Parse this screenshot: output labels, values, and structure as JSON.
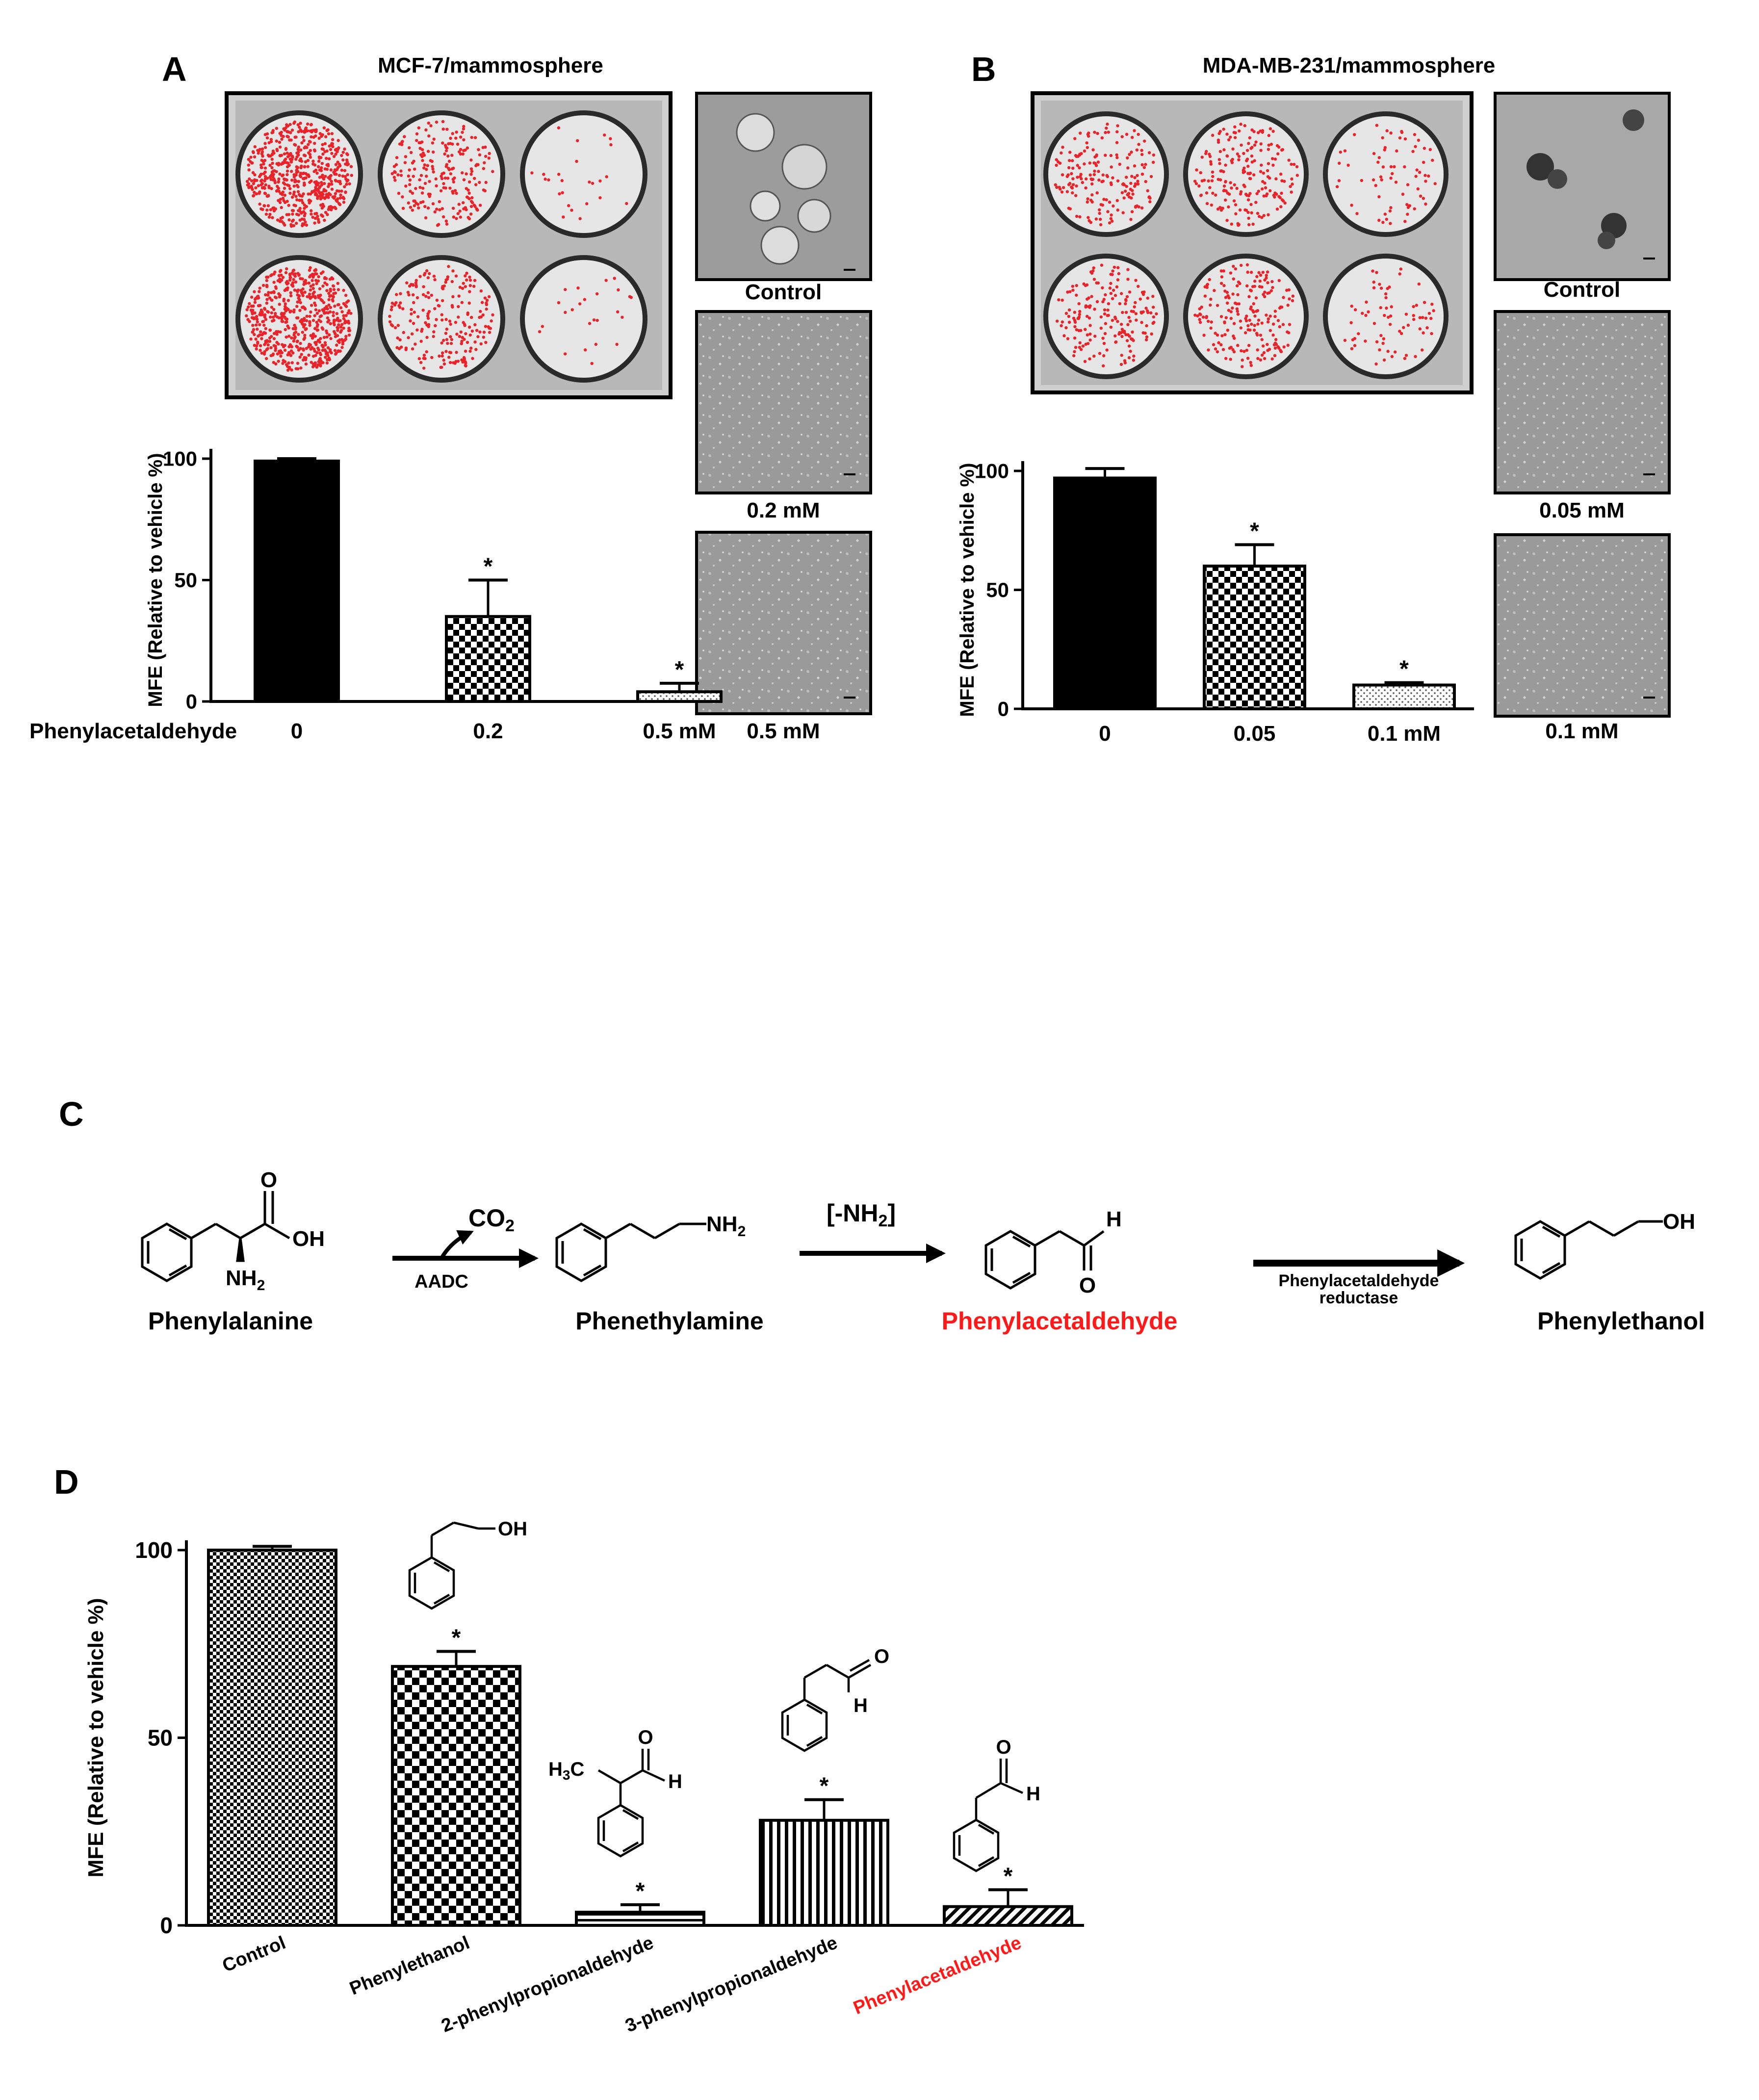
{
  "panels": {
    "A": {
      "letter": "A",
      "title": "MCF-7/mammosphere",
      "image_labels": [
        "Control",
        "0.2 mM",
        "0.5 mM"
      ],
      "treatment_label": "Phenylacetaldehyde"
    },
    "B": {
      "letter": "B",
      "title": "MDA-MB-231/mammosphere",
      "image_labels": [
        "Control",
        "0.05 mM",
        "0.1 mM"
      ]
    },
    "C": {
      "letter": "C",
      "compounds": [
        "Phenylalanine",
        "Phenethylamine",
        "Phenylacetaldehyde",
        "Phenylethanol"
      ],
      "highlight_compound": "Phenylacetaldehyde",
      "arrow1_top": "CO",
      "arrow1_top_sub": "2",
      "arrow1_bottom": "AADC",
      "arrow2_top": "[-NH",
      "arrow2_top_sub": "2",
      "arrow2_top_end": "]",
      "arrow3_bottom_line1": "Phenylacetaldehyde",
      "arrow3_bottom_line2": "reductase",
      "atoms": {
        "O": "O",
        "OH": "OH",
        "NH": "NH",
        "sub2": "2",
        "H": "H",
        "H3C": "H",
        "sub3": "3",
        "C": "C"
      }
    },
    "D": {
      "letter": "D"
    }
  },
  "colors": {
    "highlight": "#ff1a1a",
    "plate_dot": "#e8232a"
  },
  "chart_data": [
    {
      "id": "A",
      "type": "bar",
      "categories": [
        "0",
        "0.2",
        "0.5 mM"
      ],
      "values": [
        99,
        35,
        4
      ],
      "errors": [
        1,
        15,
        3.5
      ],
      "significance": [
        "",
        "*",
        "*"
      ],
      "patterns": [
        "solid",
        "checker",
        "dots"
      ],
      "ylabel": "MFE (Relative to vehicle %)",
      "ylim": [
        0,
        100
      ],
      "yticks": [
        0,
        50,
        100
      ]
    },
    {
      "id": "B",
      "type": "bar",
      "categories": [
        "0",
        "0.05",
        "0.1 mM"
      ],
      "values": [
        97,
        60,
        10
      ],
      "errors": [
        4,
        9,
        1
      ],
      "significance": [
        "",
        "*",
        "*"
      ],
      "patterns": [
        "solid",
        "checker",
        "dots"
      ],
      "ylabel": "MFE (Relative to vehicle %)",
      "ylim": [
        0,
        100
      ],
      "yticks": [
        0,
        50,
        100
      ]
    },
    {
      "id": "D",
      "type": "bar",
      "categories": [
        "Control",
        "Phenylethanol",
        "2-phenylpropionaldehyde",
        "3-phenylpropionaldehyde",
        "Phenylacetaldehyde"
      ],
      "values": [
        100,
        69,
        3.5,
        28,
        5
      ],
      "errors": [
        1,
        4,
        2,
        5.5,
        4.5
      ],
      "significance": [
        "",
        "*",
        "*",
        "*",
        "*"
      ],
      "patterns": [
        "finecheck",
        "bigcheck",
        "hstripe",
        "vstripe",
        "diag"
      ],
      "highlight_category": "Phenylacetaldehyde",
      "ylabel": "MFE (Relative to vehicle %)",
      "ylim": [
        0,
        100
      ],
      "yticks": [
        0,
        50,
        100
      ]
    }
  ]
}
